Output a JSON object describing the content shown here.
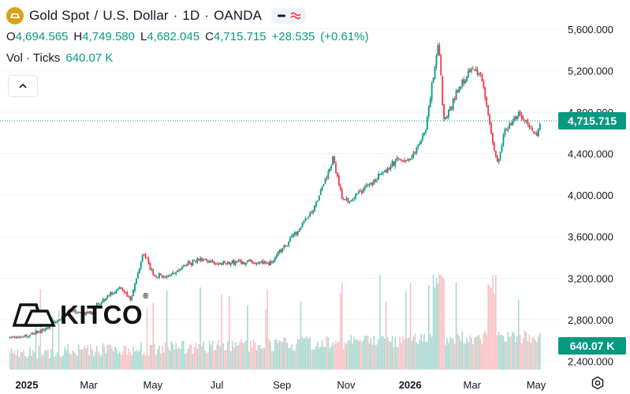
{
  "header": {
    "symbol": "Gold Spot",
    "quote": "U.S. Dollar",
    "interval": "1D",
    "source": "OANDA",
    "separator": "/",
    "dot": "·"
  },
  "ohlc": {
    "open_label": "O",
    "open": "4,694.565",
    "high_label": "H",
    "high": "4,749.580",
    "low_label": "L",
    "low": "4,682.045",
    "close_label": "C",
    "close": "4,715.715",
    "change": "+28.535",
    "change_pct": "(+0.61%)"
  },
  "volume": {
    "label": "Vol · Ticks",
    "value": "640.07 K"
  },
  "watermark": {
    "text": "KITCO",
    "mark": "®"
  },
  "tags": {
    "price": "4,715.715",
    "volume": "640.07 K"
  },
  "colors": {
    "up": "#089981",
    "down": "#f23645",
    "volume_up": "#a8d8cf",
    "volume_down": "#f7c1c4",
    "gold": "#d9a21a"
  },
  "icons": {
    "logo": "gold-bar-icon",
    "compare": "minus-icon",
    "indicator": "wave-icon",
    "collapse": "chevron-up-icon",
    "settings": "gear-icon"
  },
  "chart_data": {
    "type": "candlestick",
    "title": "Gold Spot / U.S. Dollar · 1D · OANDA",
    "y_ticks": [
      "5,600.000",
      "5,200.000",
      "4,800.000",
      "4,400.000",
      "4,000.000",
      "3,600.000",
      "3,200.000",
      "2,800.000",
      "2,400.000"
    ],
    "y_tick_values": [
      5600,
      5200,
      4800,
      4400,
      4000,
      3600,
      3200,
      2800,
      2400
    ],
    "ylim": [
      2320,
      5880
    ],
    "x_ticks": [
      "2025",
      "Mar",
      "May",
      "Jul",
      "Sep",
      "Nov",
      "2026",
      "Mar",
      "May"
    ],
    "x_tick_dates": [
      "2025-01-01",
      "2025-03-01",
      "2025-05-01",
      "2025-07-01",
      "2025-09-01",
      "2025-11-01",
      "2026-01-01",
      "2026-03-01",
      "2026-05-01"
    ],
    "last_price": 4715.715,
    "last_volume": 640070,
    "price_points": [
      {
        "date": "2024-12-16",
        "close": 2630
      },
      {
        "date": "2025-01-01",
        "close": 2640
      },
      {
        "date": "2025-01-20",
        "close": 2720
      },
      {
        "date": "2025-02-10",
        "close": 2880
      },
      {
        "date": "2025-03-01",
        "close": 2860
      },
      {
        "date": "2025-03-20",
        "close": 3040
      },
      {
        "date": "2025-04-01",
        "close": 3110
      },
      {
        "date": "2025-04-10",
        "close": 2980
      },
      {
        "date": "2025-04-22",
        "close": 3450
      },
      {
        "date": "2025-05-01",
        "close": 3240
      },
      {
        "date": "2025-05-15",
        "close": 3200
      },
      {
        "date": "2025-06-01",
        "close": 3330
      },
      {
        "date": "2025-06-15",
        "close": 3390
      },
      {
        "date": "2025-07-01",
        "close": 3330
      },
      {
        "date": "2025-07-20",
        "close": 3360
      },
      {
        "date": "2025-08-01",
        "close": 3350
      },
      {
        "date": "2025-08-20",
        "close": 3340
      },
      {
        "date": "2025-09-01",
        "close": 3480
      },
      {
        "date": "2025-09-15",
        "close": 3650
      },
      {
        "date": "2025-10-01",
        "close": 3860
      },
      {
        "date": "2025-10-20",
        "close": 4350
      },
      {
        "date": "2025-10-28",
        "close": 3980
      },
      {
        "date": "2025-11-05",
        "close": 3950
      },
      {
        "date": "2025-11-20",
        "close": 4080
      },
      {
        "date": "2025-12-05",
        "close": 4200
      },
      {
        "date": "2025-12-20",
        "close": 4350
      },
      {
        "date": "2026-01-01",
        "close": 4330
      },
      {
        "date": "2026-01-15",
        "close": 4600
      },
      {
        "date": "2026-01-28",
        "close": 5500
      },
      {
        "date": "2026-02-02",
        "close": 4700
      },
      {
        "date": "2026-02-15",
        "close": 5000
      },
      {
        "date": "2026-03-01",
        "close": 5250
      },
      {
        "date": "2026-03-10",
        "close": 5150
      },
      {
        "date": "2026-03-20",
        "close": 4550
      },
      {
        "date": "2026-03-25",
        "close": 4300
      },
      {
        "date": "2026-04-01",
        "close": 4600
      },
      {
        "date": "2026-04-15",
        "close": 4780
      },
      {
        "date": "2026-04-25",
        "close": 4650
      },
      {
        "date": "2026-05-01",
        "close": 4560
      },
      {
        "date": "2026-05-06",
        "close": 4715.715
      }
    ]
  }
}
